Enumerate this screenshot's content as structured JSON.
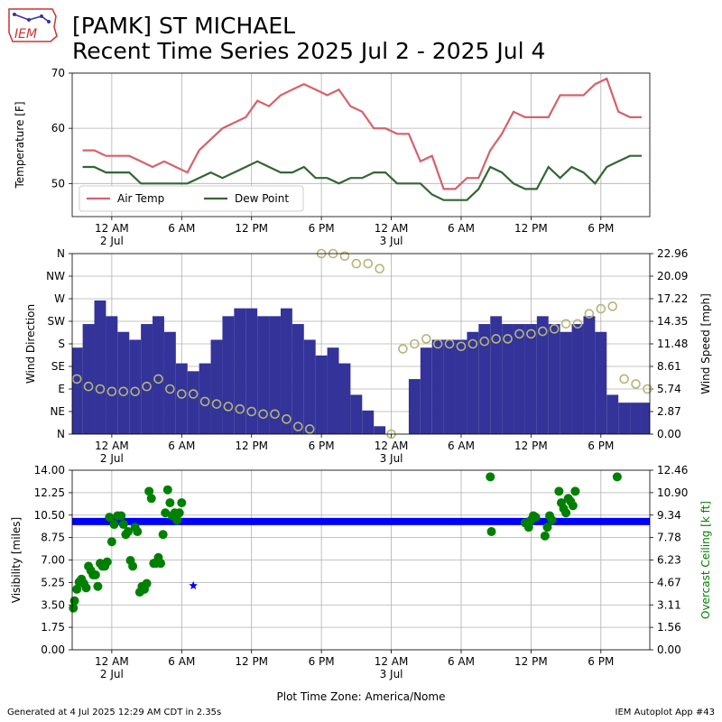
{
  "header": {
    "logo_text": "IEM",
    "title_line1": "[PAMK] ST MICHAEL",
    "title_line2": "Recent Time Series 2025 Jul 2 - 2025 Jul 4"
  },
  "footer": {
    "left": "Generated at 4 Jul 2025 12:29 AM CDT in 2.35s",
    "right": "IEM Autoplot App #43"
  },
  "colors": {
    "air_temp": "#d6616b",
    "dew_point": "#336633",
    "wind_speed_bar": "#333399",
    "wind_direction": "#b5b57a",
    "visibility": "#0000ff",
    "ceiling": "#008000",
    "grid": "#b0b0b0"
  },
  "chart_data": [
    {
      "type": "line",
      "x_unit": "hours since 2 Jul 2025 12 AM (America/Nome)",
      "x_range": [
        -3.4,
        46.2
      ],
      "x_ticks": [
        {
          "x": 0,
          "label": "12 AM",
          "sublabel": "2 Jul"
        },
        {
          "x": 6,
          "label": "6 AM",
          "sublabel": ""
        },
        {
          "x": 12,
          "label": "12 PM",
          "sublabel": ""
        },
        {
          "x": 18,
          "label": "6 PM",
          "sublabel": ""
        },
        {
          "x": 24,
          "label": "12 AM",
          "sublabel": "3 Jul"
        },
        {
          "x": 30,
          "label": "6 AM",
          "sublabel": ""
        },
        {
          "x": 36,
          "label": "12 PM",
          "sublabel": ""
        },
        {
          "x": 42,
          "label": "6 PM",
          "sublabel": ""
        }
      ],
      "ylabel": "Temperature [F]",
      "ylim": [
        44,
        70
      ],
      "y_ticks": [
        50,
        60,
        70
      ],
      "legend_position": "lower-left",
      "series": [
        {
          "name": "Air Temp",
          "color_key": "air_temp",
          "x": [
            -2.5,
            -1.5,
            -0.5,
            0.5,
            1.5,
            2.5,
            3.5,
            4.5,
            5.5,
            6.5,
            7.5,
            8.5,
            9.5,
            10.5,
            11.5,
            12.5,
            13.5,
            14.5,
            15.5,
            16.5,
            17.5,
            18.5,
            19.5,
            20.5,
            21.5,
            22.5,
            23.5,
            24.5,
            25.5,
            26.5,
            27.5,
            28.5,
            29.5,
            30.5,
            31.5,
            32.5,
            33.5,
            34.5,
            35.5,
            36.5,
            37.5,
            38.5,
            39.5,
            40.5,
            41.5,
            42.5,
            43.5,
            44.5,
            45.5
          ],
          "values": [
            56,
            56,
            55,
            55,
            55,
            54,
            53,
            54,
            53,
            52,
            56,
            58,
            60,
            61,
            62,
            65,
            64,
            66,
            67,
            68,
            67,
            66,
            67,
            64,
            63,
            60,
            60,
            59,
            59,
            54,
            55,
            49,
            49,
            51,
            51,
            56,
            59,
            63,
            62,
            62,
            62,
            66,
            66,
            66,
            68,
            69,
            63,
            62,
            62
          ]
        },
        {
          "name": "Dew Point",
          "color_key": "dew_point",
          "x": [
            -2.5,
            -1.5,
            -0.5,
            0.5,
            1.5,
            2.5,
            3.5,
            4.5,
            5.5,
            6.5,
            7.5,
            8.5,
            9.5,
            10.5,
            11.5,
            12.5,
            13.5,
            14.5,
            15.5,
            16.5,
            17.5,
            18.5,
            19.5,
            20.5,
            21.5,
            22.5,
            23.5,
            24.5,
            25.5,
            26.5,
            27.5,
            28.5,
            29.5,
            30.5,
            31.5,
            32.5,
            33.5,
            34.5,
            35.5,
            36.5,
            37.5,
            38.5,
            39.5,
            40.5,
            41.5,
            42.5,
            43.5,
            44.5,
            45.5
          ],
          "values": [
            53,
            53,
            52,
            52,
            52,
            50,
            50,
            50,
            50,
            50,
            51,
            52,
            51,
            52,
            53,
            54,
            53,
            52,
            52,
            53,
            51,
            51,
            50,
            51,
            51,
            52,
            52,
            50,
            50,
            50,
            48,
            47,
            47,
            47,
            49,
            53,
            52,
            50,
            49,
            49,
            53,
            51,
            53,
            52,
            50,
            53,
            54,
            55,
            55
          ]
        }
      ]
    },
    {
      "type": "bar",
      "x_unit": "hours since 2 Jul 2025 12 AM (America/Nome)",
      "x_range": [
        -3.4,
        46.2
      ],
      "x_ticks": [
        {
          "x": 0,
          "label": "12 AM",
          "sublabel": "2 Jul"
        },
        {
          "x": 6,
          "label": "6 AM",
          "sublabel": ""
        },
        {
          "x": 12,
          "label": "12 PM",
          "sublabel": ""
        },
        {
          "x": 18,
          "label": "6 PM",
          "sublabel": ""
        },
        {
          "x": 24,
          "label": "12 AM",
          "sublabel": "3 Jul"
        },
        {
          "x": 30,
          "label": "6 AM",
          "sublabel": ""
        },
        {
          "x": 36,
          "label": "12 PM",
          "sublabel": ""
        },
        {
          "x": 42,
          "label": "6 PM",
          "sublabel": ""
        }
      ],
      "ylabel": "Wind Direction",
      "ylim": [
        0,
        360
      ],
      "y_ticks": [
        {
          "v": 0,
          "label": "N"
        },
        {
          "v": 45,
          "label": "NE"
        },
        {
          "v": 90,
          "label": "E"
        },
        {
          "v": 135,
          "label": "SE"
        },
        {
          "v": 180,
          "label": "S"
        },
        {
          "v": 225,
          "label": "SW"
        },
        {
          "v": 270,
          "label": "W"
        },
        {
          "v": 315,
          "label": "NW"
        },
        {
          "v": 360,
          "label": "N"
        }
      ],
      "y2label": "Wind Speed [mph]",
      "y2lim": [
        0,
        22.96
      ],
      "y2_ticks": [
        "0.00",
        "2.87",
        "5.74",
        "8.61",
        "11.48",
        "14.35",
        "17.22",
        "20.09",
        "22.96"
      ],
      "series": [
        {
          "name": "Wind Speed",
          "color_key": "wind_speed_bar",
          "axis": "right",
          "x": [
            -3,
            -2,
            -1,
            0,
            1,
            2,
            3,
            4,
            5,
            6,
            7,
            8,
            9,
            10,
            11,
            12,
            13,
            14,
            15,
            16,
            17,
            18,
            19,
            20,
            21,
            22,
            23,
            24,
            25,
            26,
            27,
            28,
            29,
            30,
            31,
            32,
            33,
            34,
            35,
            36,
            37,
            38,
            39,
            40,
            41,
            42,
            43,
            44,
            45,
            46
          ],
          "values": [
            11,
            14,
            17,
            15,
            13,
            12,
            14,
            15,
            13,
            9,
            8,
            9,
            12,
            15,
            16,
            16,
            15,
            15,
            16,
            14,
            12,
            10,
            11,
            9,
            5,
            3,
            1,
            0,
            0,
            7,
            11,
            12,
            12,
            12,
            13,
            14,
            15,
            14,
            14,
            14,
            15,
            14,
            13,
            14,
            15,
            13,
            5,
            4,
            4,
            4
          ]
        },
        {
          "name": "Wind Direction",
          "color_key": "wind_direction",
          "axis": "left",
          "x": [
            -3,
            -2,
            -1,
            0,
            1,
            2,
            3,
            4,
            5,
            6,
            7,
            8,
            9,
            10,
            11,
            12,
            13,
            14,
            15,
            16,
            17,
            18,
            19,
            20,
            21,
            22,
            23,
            24,
            25,
            26,
            27,
            28,
            29,
            30,
            31,
            32,
            33,
            34,
            35,
            36,
            37,
            38,
            39,
            40,
            41,
            42,
            43,
            44,
            45,
            46
          ],
          "values": [
            110,
            95,
            90,
            85,
            85,
            85,
            95,
            110,
            90,
            80,
            80,
            65,
            60,
            55,
            50,
            45,
            40,
            40,
            30,
            15,
            10,
            360,
            360,
            355,
            340,
            340,
            330,
            0,
            170,
            180,
            190,
            180,
            180,
            175,
            180,
            185,
            190,
            190,
            200,
            200,
            205,
            210,
            220,
            220,
            240,
            250,
            255,
            110,
            100,
            90
          ]
        }
      ]
    },
    {
      "type": "scatter",
      "x_unit": "hours since 2 Jul 2025 12 AM (America/Nome)",
      "x_range": [
        -3.4,
        46.2
      ],
      "x_ticks": [
        {
          "x": 0,
          "label": "12 AM",
          "sublabel": "2 Jul"
        },
        {
          "x": 6,
          "label": "6 AM",
          "sublabel": ""
        },
        {
          "x": 12,
          "label": "12 PM",
          "sublabel": ""
        },
        {
          "x": 18,
          "label": "6 PM",
          "sublabel": ""
        },
        {
          "x": 24,
          "label": "12 AM",
          "sublabel": "3 Jul"
        },
        {
          "x": 30,
          "label": "6 AM",
          "sublabel": ""
        },
        {
          "x": 36,
          "label": "12 PM",
          "sublabel": ""
        },
        {
          "x": 42,
          "label": "6 PM",
          "sublabel": ""
        }
      ],
      "xlabel": "Plot Time Zone: America/Nome",
      "ylabel": "Visibility [miles]",
      "ylim": [
        0,
        14
      ],
      "y_ticks": [
        "0.00",
        "1.75",
        "3.50",
        "5.25",
        "7.00",
        "8.75",
        "10.50",
        "12.25",
        "14.00"
      ],
      "y2label": "Overcast Ceiling [k ft]",
      "y2lim": [
        0,
        12.46
      ],
      "y2_ticks": [
        "0.00",
        "1.56",
        "3.11",
        "4.67",
        "6.23",
        "7.78",
        "9.34",
        "10.90",
        "12.46"
      ],
      "series": [
        {
          "name": "Visibility",
          "color_key": "visibility",
          "axis": "left",
          "marker": "star",
          "x_start": -3.4,
          "x_end": 46.2,
          "value": 10.0,
          "points": [
            {
              "x": 7.0,
              "y": 5.0
            }
          ]
        },
        {
          "name": "Overcast Ceiling",
          "color_key": "ceiling",
          "axis": "right",
          "marker": "circle",
          "x": [
            -3.3,
            -3.2,
            -3.0,
            -2.8,
            -2.6,
            -2.4,
            -2.2,
            -2.0,
            -1.8,
            -1.6,
            -1.4,
            -1.2,
            -1.0,
            -0.8,
            -0.6,
            -0.4,
            -0.2,
            0.0,
            0.2,
            0.5,
            0.8,
            1.0,
            1.2,
            1.4,
            1.6,
            1.8,
            2.0,
            2.2,
            2.4,
            2.6,
            2.8,
            3.0,
            3.2,
            3.4,
            3.6,
            3.8,
            4.0,
            4.2,
            4.4,
            4.6,
            4.8,
            5.0,
            5.2,
            5.4,
            5.6,
            5.8,
            6.0,
            32.5,
            32.6,
            35.5,
            35.8,
            36.0,
            36.2,
            36.4,
            37.2,
            37.4,
            37.6,
            37.8,
            38.4,
            38.6,
            38.8,
            39.0,
            39.2,
            39.4,
            39.6,
            39.8,
            43.4
          ],
          "values": [
            2.9,
            3.4,
            4.2,
            4.7,
            4.9,
            4.6,
            4.3,
            5.8,
            5.5,
            5.2,
            5.2,
            4.4,
            6.0,
            5.8,
            5.8,
            6.1,
            9.2,
            7.5,
            8.7,
            9.3,
            9.3,
            8.7,
            8.0,
            8.2,
            6.2,
            5.8,
            8.5,
            8.2,
            4.0,
            4.4,
            4.2,
            4.6,
            11.0,
            10.5,
            6.0,
            6.0,
            6.4,
            6.0,
            8.0,
            9.5,
            11.1,
            10.2,
            9.3,
            9.5,
            9.0,
            9.5,
            10.2,
            12.0,
            8.2,
            8.8,
            8.5,
            9.0,
            9.3,
            9.2,
            7.9,
            8.5,
            9.3,
            9.0,
            11.0,
            10.2,
            9.8,
            9.5,
            10.5,
            10.3,
            10.0,
            11.0,
            12.0
          ]
        }
      ]
    }
  ]
}
